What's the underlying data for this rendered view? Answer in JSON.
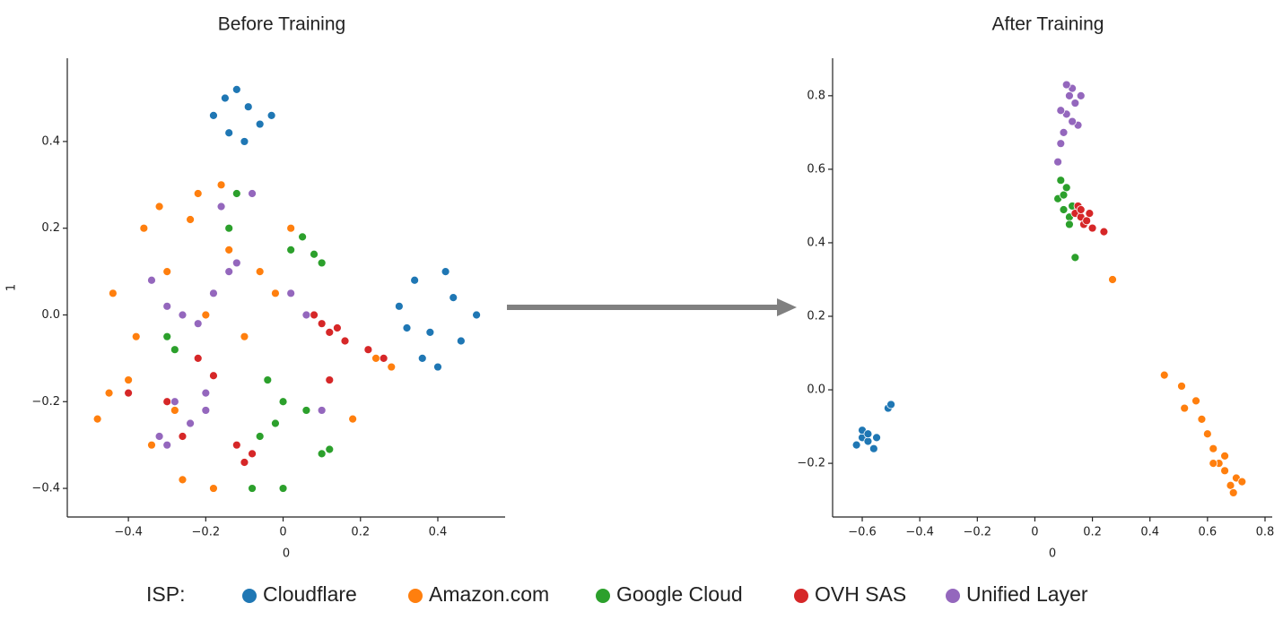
{
  "legend_title": "ISP:",
  "chart_data": [
    {
      "type": "scatter",
      "title": "Before Training",
      "xlabel": "0",
      "ylabel": "1",
      "xlim": [
        -0.558,
        0.574
      ],
      "ylim": [
        -0.466,
        0.592
      ],
      "xticks": [
        {
          "value": -0.4,
          "label": "−0.4"
        },
        {
          "value": -0.2,
          "label": "−0.2"
        },
        0,
        0.2,
        0.4
      ],
      "yticks": [
        {
          "value": -0.4,
          "label": "−0.4"
        },
        {
          "value": -0.2,
          "label": "−0.2"
        },
        {
          "value": 0,
          "label": "0.0"
        },
        0.2,
        0.4
      ],
      "series": [
        {
          "name": "Cloudflare",
          "color": "#1f77b4",
          "x": [
            -0.18,
            -0.15,
            -0.12,
            -0.09,
            -0.06,
            -0.03,
            -0.14,
            -0.1,
            0.3,
            0.34,
            0.38,
            0.42,
            0.46,
            0.5,
            0.36,
            0.44,
            0.4,
            0.32
          ],
          "values": [
            0.46,
            0.5,
            0.52,
            0.48,
            0.44,
            0.46,
            0.42,
            0.4,
            0.02,
            0.08,
            -0.04,
            0.1,
            -0.06,
            0.0,
            -0.1,
            0.04,
            -0.12,
            -0.03
          ]
        },
        {
          "name": "Amazon.com",
          "color": "#ff7f0e",
          "x": [
            -0.48,
            -0.44,
            -0.4,
            -0.36,
            -0.34,
            -0.3,
            -0.26,
            -0.22,
            -0.18,
            -0.14,
            -0.1,
            -0.06,
            -0.02,
            0.02,
            -0.38,
            -0.28,
            -0.2,
            -0.12,
            -0.45,
            -0.32,
            0.24,
            0.28,
            0.18,
            -0.24,
            -0.16
          ],
          "values": [
            -0.24,
            0.05,
            -0.15,
            0.2,
            -0.3,
            0.1,
            -0.38,
            0.28,
            -0.4,
            0.15,
            -0.05,
            0.1,
            0.05,
            0.2,
            -0.05,
            -0.22,
            0.0,
            -0.3,
            -0.18,
            0.25,
            -0.1,
            -0.12,
            -0.24,
            0.22,
            0.3
          ]
        },
        {
          "name": "Google Cloud",
          "color": "#2ca02c",
          "x": [
            0.02,
            0.05,
            0.08,
            0.1,
            0.06,
            -0.04,
            0.0,
            -0.02,
            -0.08,
            -0.3,
            -0.28,
            -0.06,
            0.1,
            0.12,
            -0.08,
            0.0,
            -0.12,
            -0.14
          ],
          "values": [
            0.15,
            0.18,
            0.14,
            0.12,
            -0.22,
            -0.15,
            -0.2,
            -0.25,
            -0.4,
            -0.05,
            -0.08,
            -0.28,
            -0.32,
            -0.31,
            -0.4,
            -0.4,
            0.28,
            0.2
          ]
        },
        {
          "name": "OVH SAS",
          "color": "#d62728",
          "x": [
            0.08,
            0.1,
            0.12,
            0.14,
            0.16,
            0.22,
            0.26,
            -0.22,
            -0.18,
            -0.12,
            -0.1,
            -0.08,
            -0.26,
            -0.4,
            -0.3,
            0.12
          ],
          "values": [
            0.0,
            -0.02,
            -0.04,
            -0.03,
            -0.06,
            -0.08,
            -0.1,
            -0.1,
            -0.14,
            -0.3,
            -0.34,
            -0.32,
            -0.28,
            -0.18,
            -0.2,
            -0.15
          ]
        },
        {
          "name": "Unified Layer",
          "color": "#9467bd",
          "x": [
            -0.34,
            -0.3,
            -0.26,
            -0.22,
            -0.18,
            -0.14,
            -0.28,
            -0.24,
            -0.2,
            -0.16,
            -0.08,
            0.02,
            0.06,
            -0.32,
            -0.2,
            -0.12,
            0.1,
            -0.3
          ],
          "values": [
            0.08,
            0.02,
            0.0,
            -0.02,
            0.05,
            0.1,
            -0.2,
            -0.25,
            -0.18,
            0.25,
            0.28,
            0.05,
            0.0,
            -0.28,
            -0.22,
            0.12,
            -0.22,
            -0.3
          ]
        }
      ]
    },
    {
      "type": "scatter",
      "title": "After Training",
      "xlabel": "0",
      "xlim": [
        -0.703,
        0.825
      ],
      "ylim": [
        -0.346,
        0.902
      ],
      "xticks": [
        {
          "value": -0.6,
          "label": "−0.6"
        },
        {
          "value": -0.4,
          "label": "−0.4"
        },
        {
          "value": -0.2,
          "label": "−0.2"
        },
        0,
        0.2,
        0.4,
        0.6,
        0.8
      ],
      "yticks": [
        {
          "value": -0.2,
          "label": "−0.2"
        },
        {
          "value": 0,
          "label": "0.0"
        },
        0.2,
        0.4,
        0.6,
        0.8
      ],
      "series": [
        {
          "name": "Cloudflare",
          "color": "#1f77b4",
          "x": [
            -0.62,
            -0.6,
            -0.58,
            -0.56,
            -0.6,
            -0.58,
            -0.51,
            -0.5,
            -0.55
          ],
          "values": [
            -0.15,
            -0.13,
            -0.14,
            -0.16,
            -0.11,
            -0.12,
            -0.05,
            -0.04,
            -0.13
          ]
        },
        {
          "name": "Amazon.com",
          "color": "#ff7f0e",
          "x": [
            0.27,
            0.45,
            0.51,
            0.52,
            0.56,
            0.58,
            0.6,
            0.62,
            0.64,
            0.66,
            0.68,
            0.7,
            0.72,
            0.66,
            0.62,
            0.69
          ],
          "values": [
            0.3,
            0.04,
            0.01,
            -0.05,
            -0.03,
            -0.08,
            -0.12,
            -0.16,
            -0.2,
            -0.22,
            -0.26,
            -0.24,
            -0.25,
            -0.18,
            -0.2,
            -0.28
          ]
        },
        {
          "name": "Google Cloud",
          "color": "#2ca02c",
          "x": [
            0.08,
            0.09,
            0.1,
            0.11,
            0.12,
            0.13,
            0.14,
            0.12,
            0.1
          ],
          "values": [
            0.52,
            0.57,
            0.49,
            0.55,
            0.47,
            0.5,
            0.36,
            0.45,
            0.53
          ]
        },
        {
          "name": "OVH SAS",
          "color": "#d62728",
          "x": [
            0.14,
            0.15,
            0.16,
            0.17,
            0.18,
            0.19,
            0.2,
            0.24,
            0.16
          ],
          "values": [
            0.48,
            0.5,
            0.47,
            0.45,
            0.46,
            0.48,
            0.44,
            0.43,
            0.49
          ]
        },
        {
          "name": "Unified Layer",
          "color": "#9467bd",
          "x": [
            0.08,
            0.09,
            0.1,
            0.11,
            0.12,
            0.13,
            0.14,
            0.15,
            0.16,
            0.11,
            0.09,
            0.13
          ],
          "values": [
            0.62,
            0.67,
            0.7,
            0.75,
            0.8,
            0.82,
            0.78,
            0.72,
            0.8,
            0.83,
            0.76,
            0.73
          ]
        }
      ]
    }
  ]
}
